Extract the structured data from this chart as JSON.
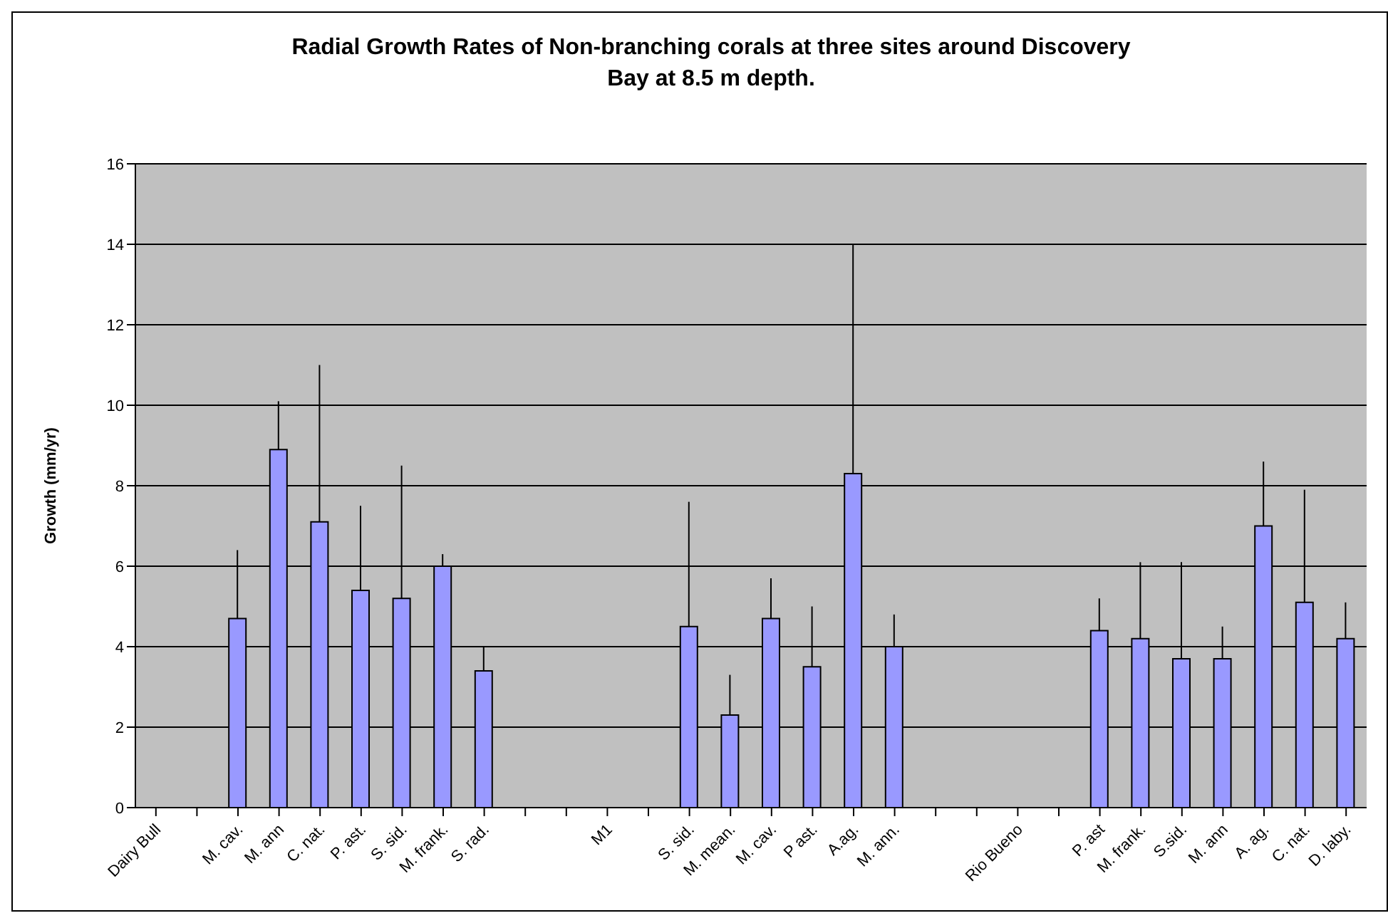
{
  "chart_data": {
    "type": "bar",
    "title": "Radial Growth Rates of Non-branching corals at three sites around Discovery Bay at 8.5 m depth.",
    "ylabel": "Growth (mm/yr)",
    "categories": [
      "Dairy Bull",
      null,
      "M. cav.",
      "M. ann",
      "C. nat.",
      "P. ast.",
      "S. sid.",
      "M. frank.",
      "S. rad.",
      null,
      null,
      "M1",
      null,
      "S. sid.",
      "M. mean.",
      "M. cav.",
      "P ast.",
      "A.ag.",
      "M. ann.",
      null,
      null,
      "Rio Bueno",
      null,
      "P. ast",
      "M. frank.",
      "S.sid.",
      "M. ann",
      "A. ag.",
      "C. nat.",
      "D. laby."
    ],
    "values": [
      null,
      null,
      4.7,
      8.9,
      7.1,
      5.4,
      5.2,
      6.0,
      3.4,
      null,
      null,
      null,
      null,
      4.5,
      2.3,
      4.7,
      3.5,
      8.3,
      4.0,
      null,
      null,
      null,
      null,
      4.4,
      4.2,
      3.7,
      3.7,
      7.0,
      5.1,
      4.2
    ],
    "errors": [
      null,
      null,
      [
        4.7,
        6.4
      ],
      [
        8.9,
        10.1
      ],
      [
        7.1,
        11.0
      ],
      [
        5.4,
        7.5
      ],
      [
        5.2,
        8.5
      ],
      [
        6.0,
        6.3
      ],
      [
        3.4,
        4.0
      ],
      null,
      null,
      null,
      null,
      [
        4.5,
        7.6
      ],
      [
        2.3,
        3.3
      ],
      [
        4.7,
        5.7
      ],
      [
        3.5,
        5.0
      ],
      [
        8.3,
        14.0
      ],
      [
        4.0,
        4.8
      ],
      null,
      null,
      null,
      null,
      [
        4.4,
        5.2
      ],
      [
        4.2,
        6.1
      ],
      [
        3.7,
        6.1
      ],
      [
        3.7,
        4.5
      ],
      [
        7.0,
        8.6
      ],
      [
        5.1,
        7.9
      ],
      [
        4.2,
        5.1
      ]
    ],
    "color": "#9999ff",
    "ylim": [
      0,
      16
    ],
    "yticks": [
      0,
      2,
      4,
      6,
      8,
      10,
      12,
      14,
      16
    ],
    "grid": "y"
  }
}
